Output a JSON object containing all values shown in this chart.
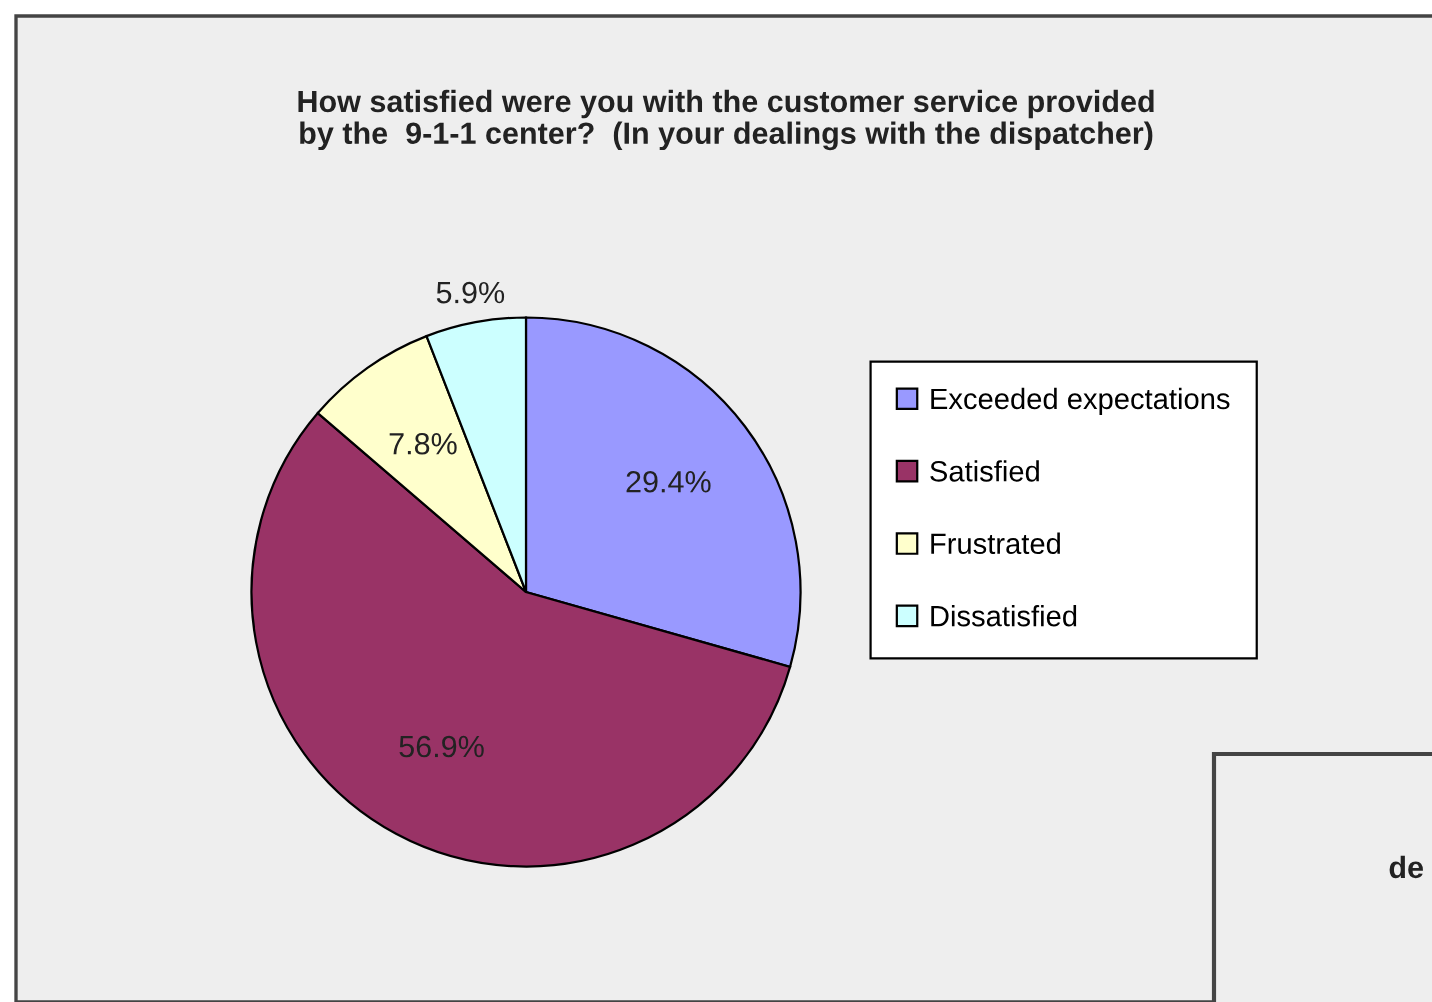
{
  "chart_data": {
    "type": "pie",
    "title": "How satisfied were you with the customer service provided\nby the  9-1-1 center?  (In your dealings with the dispatcher)",
    "categories": [
      "Exceeded expectations",
      "Satisfied",
      "Frustrated",
      "Dissatisfied"
    ],
    "values": [
      29.4,
      56.9,
      7.8,
      5.9
    ],
    "colors": [
      "#9999ff",
      "#993366",
      "#ffffcc",
      "#ccffff"
    ],
    "value_labels": [
      "29.4%",
      "56.9%",
      "7.8%",
      "5.9%"
    ],
    "legend": "right",
    "annotations": [
      "de"
    ]
  }
}
